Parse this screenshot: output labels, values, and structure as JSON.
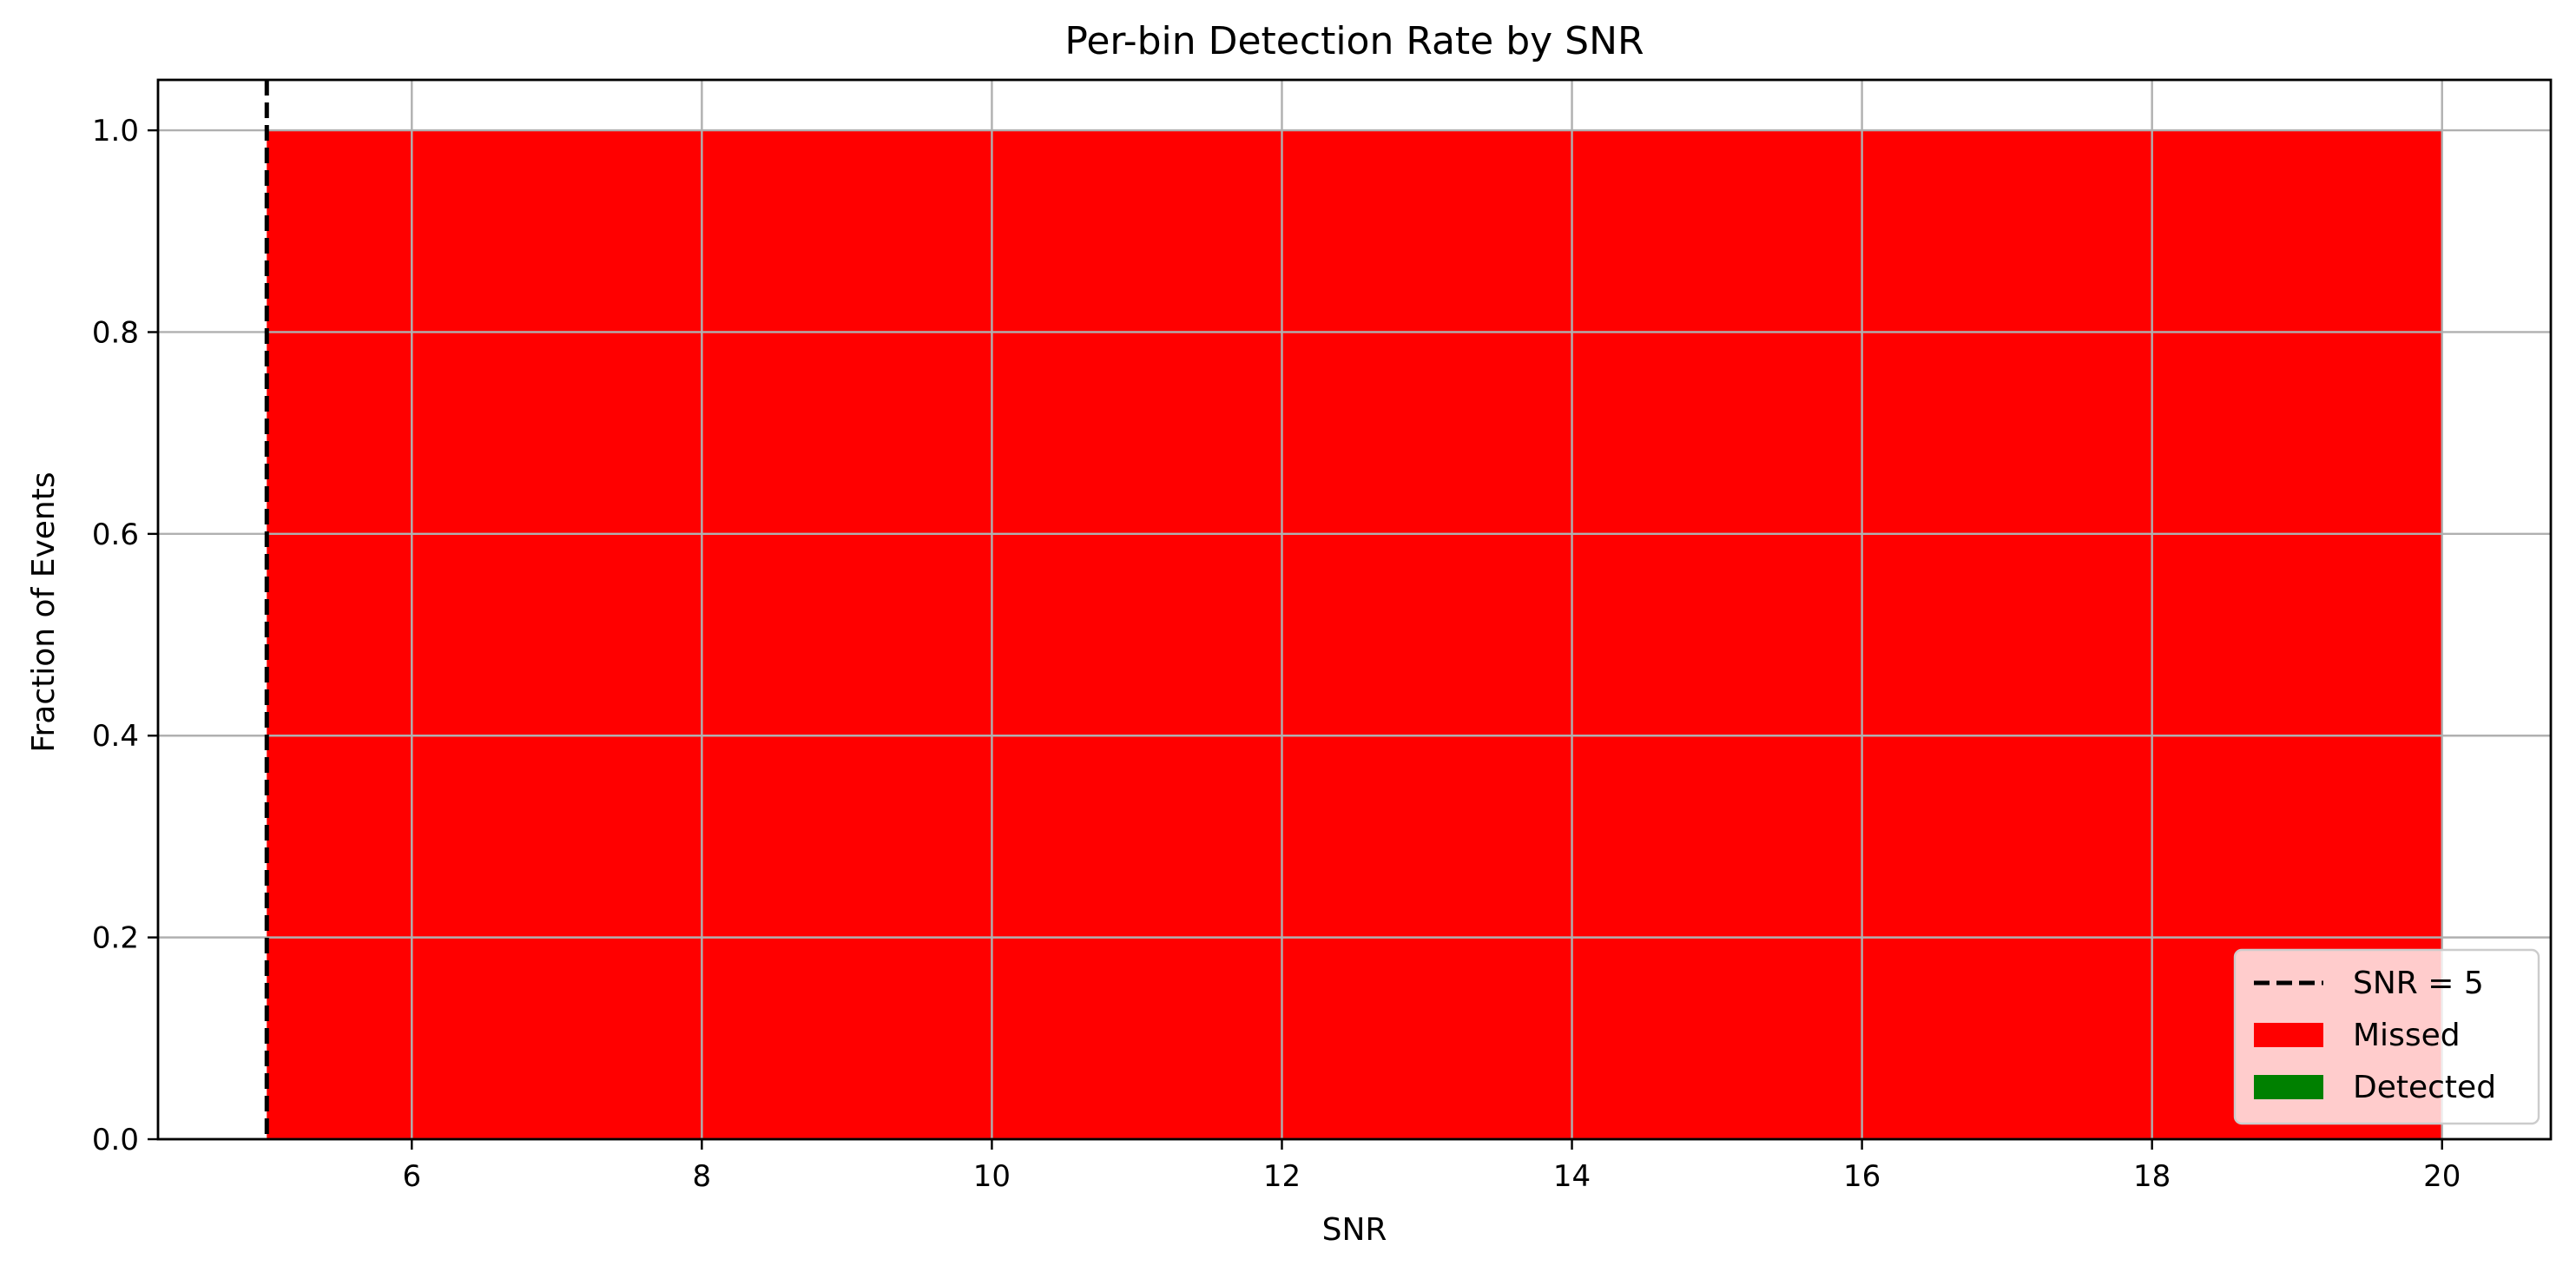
{
  "chart_data": {
    "type": "bar",
    "title": "Per-bin Detection Rate by SNR",
    "xlabel": "SNR",
    "ylabel": "Fraction of Events",
    "xlim": [
      4.25,
      20.75
    ],
    "ylim": [
      0.0,
      1.05
    ],
    "xticks": [
      6,
      8,
      10,
      12,
      14,
      16,
      18,
      20
    ],
    "xtick_labels": [
      "6",
      "8",
      "10",
      "12",
      "14",
      "16",
      "18",
      "20"
    ],
    "yticks": [
      0.0,
      0.2,
      0.4,
      0.6,
      0.8,
      1.0
    ],
    "ytick_labels": [
      "0.0",
      "0.2",
      "0.4",
      "0.6",
      "0.8",
      "1.0"
    ],
    "grid": true,
    "bins": [
      [
        5,
        20
      ]
    ],
    "stacked": true,
    "series": [
      {
        "name": "Missed",
        "color": "#ff0000",
        "values": [
          1.0
        ]
      },
      {
        "name": "Detected",
        "color": "#008000",
        "values": [
          0.0
        ]
      }
    ],
    "reference_lines": [
      {
        "orientation": "vertical",
        "x": 5,
        "style": "dashed",
        "color": "#000000",
        "label": "SNR = 5"
      }
    ],
    "legend": {
      "location": "lower-right",
      "entries": [
        {
          "label": "SNR = 5",
          "kind": "line-dashed",
          "color": "#000000"
        },
        {
          "label": "Missed",
          "kind": "patch",
          "color": "#ff0000"
        },
        {
          "label": "Detected",
          "kind": "patch",
          "color": "#008000"
        }
      ]
    }
  }
}
